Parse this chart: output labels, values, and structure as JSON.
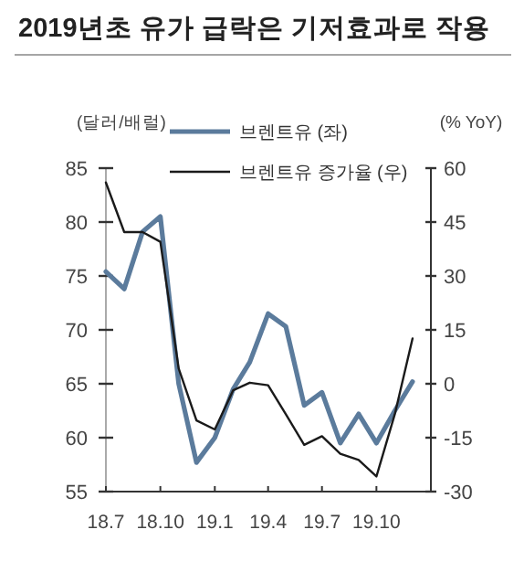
{
  "chart_data": {
    "type": "line",
    "title": "2019년초 유가 급락은 기저효과로 작용",
    "ylabel": "(달러/배럴)",
    "y2label": "(% YoY)",
    "x": [
      "2018-07",
      "2018-08",
      "2018-09",
      "2018-10",
      "2018-11",
      "2018-12",
      "2019-01",
      "2019-02",
      "2019-03",
      "2019-04",
      "2019-05",
      "2019-06",
      "2019-07",
      "2019-08",
      "2019-09",
      "2019-10",
      "2019-11",
      "2019-12"
    ],
    "xlim": [
      "2018-07",
      "2020-01"
    ],
    "xticks": [
      {
        "value": "2018-07",
        "label": "18.7"
      },
      {
        "value": "2018-10",
        "label": "18.10"
      },
      {
        "value": "2019-01",
        "label": "19.1"
      },
      {
        "value": "2019-04",
        "label": "19.4"
      },
      {
        "value": "2019-07",
        "label": "19.7"
      },
      {
        "value": "2019-10",
        "label": "19.10"
      }
    ],
    "ylim": [
      55,
      85
    ],
    "yticks": [
      55,
      60,
      65,
      70,
      75,
      80,
      85
    ],
    "y2lim": [
      -30,
      60
    ],
    "y2ticks": [
      -30,
      -15,
      0,
      15,
      30,
      45,
      60
    ],
    "series": [
      {
        "name": "브렌트유 (좌)",
        "color": "#5b7b9c",
        "values": [
          75.4,
          73.8,
          79.1,
          80.5,
          65,
          57.7,
          60,
          64.5,
          67,
          71.5,
          70.3,
          63,
          64.2,
          59.5,
          62.2,
          59.5,
          62.5,
          65.2
        ]
      },
      {
        "name": "브렌트유 증가율 (우)",
        "color": "#1a1a1a",
        "axis": "y2",
        "values": [
          56,
          42.2,
          42.2,
          39.5,
          4.2,
          -10.2,
          -12.7,
          -1.8,
          0.3,
          -0.4,
          -8.5,
          -17,
          -14.6,
          -19.5,
          -21.2,
          -25.8,
          -8.5,
          12.6
        ]
      }
    ],
    "legend": "top",
    "grid": false
  }
}
